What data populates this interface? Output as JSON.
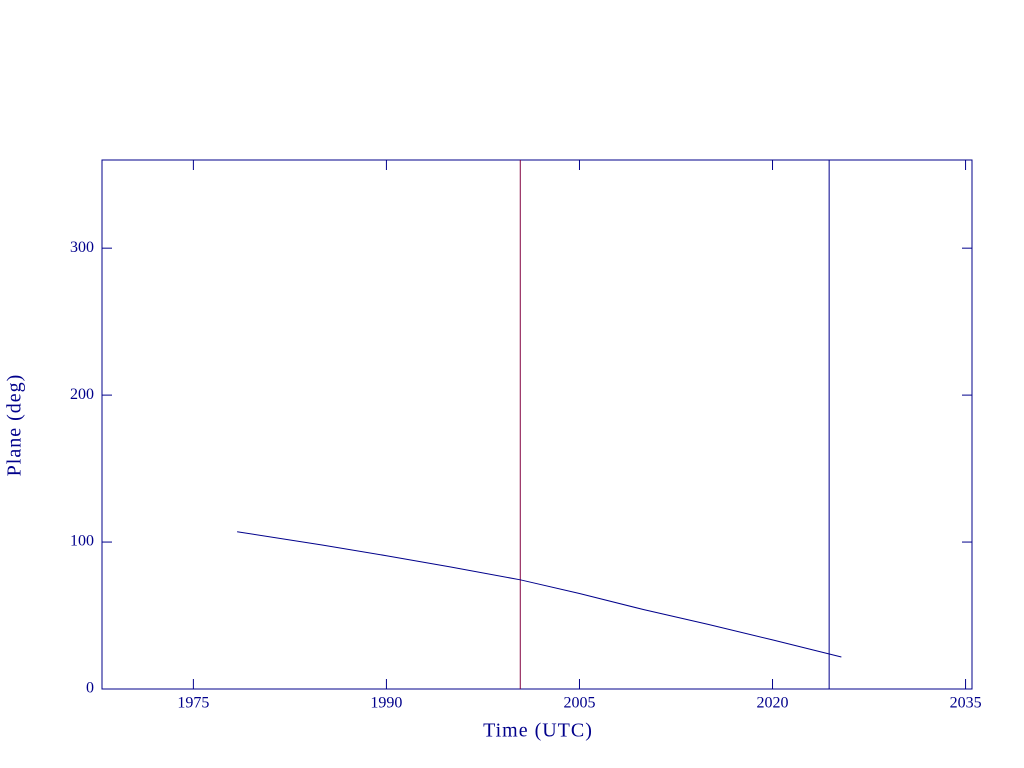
{
  "chart_data": {
    "type": "line",
    "x_label": "Time (UTC)",
    "y_label": "Plane (deg)",
    "x": [
      1978.4,
      1985,
      1990,
      1995,
      2000.4,
      2005,
      2010,
      2015,
      2020,
      2025.35
    ],
    "series": [
      {
        "name": "Plane",
        "color": "#00008b",
        "values": [
          107,
          98,
          90.7,
          83,
          74.3,
          65,
          54,
          44,
          33.4,
          21.8
        ]
      }
    ],
    "vlines": [
      {
        "x": 2000.4,
        "color": "#800040"
      },
      {
        "x": 2024.4,
        "color": "#00008b"
      }
    ],
    "xlim": [
      1967.9,
      2035.5
    ],
    "xticks": [
      1975,
      1990,
      2005,
      2020,
      2035
    ],
    "ylim": [
      0,
      360
    ],
    "yticks": [
      0,
      100,
      200,
      300
    ],
    "axis_color": "#00008b"
  }
}
